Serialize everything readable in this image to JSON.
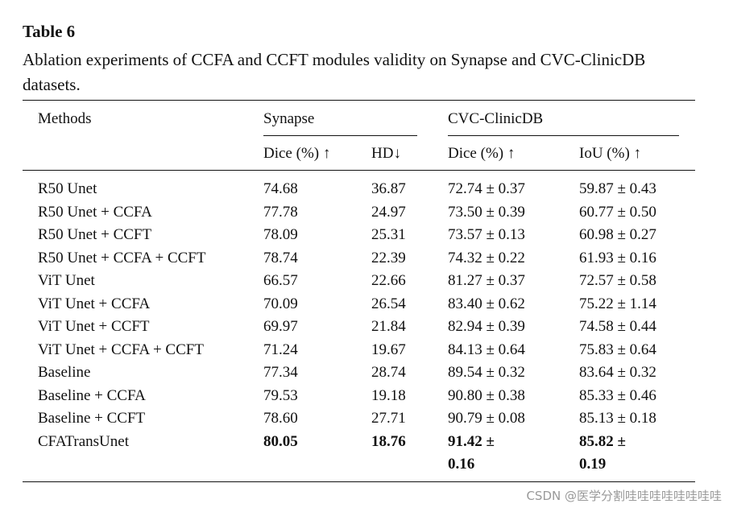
{
  "title": "Table 6",
  "caption": "Ablation experiments of CCFA and CCFT modules validity on Synapse and CVC-ClinicDB datasets.",
  "table": {
    "header": {
      "methods": "Methods",
      "group1": "Synapse",
      "group2": "CVC-ClinicDB",
      "columns": [
        "Dice (%) ↑",
        "HD↓",
        "Dice (%) ↑",
        "IoU (%) ↑"
      ]
    },
    "rows": [
      [
        "R50 Unet",
        "74.68",
        "36.87",
        "72.74 ± 0.37",
        "59.87 ± 0.43"
      ],
      [
        "R50 Unet + CCFA",
        "77.78",
        "24.97",
        "73.50 ± 0.39",
        "60.77 ± 0.50"
      ],
      [
        "R50 Unet + CCFT",
        "78.09",
        "25.31",
        "73.57 ± 0.13",
        "60.98 ± 0.27"
      ],
      [
        "R50 Unet + CCFA + CCFT",
        "78.74",
        "22.39",
        "74.32 ± 0.22",
        "61.93 ± 0.16"
      ],
      [
        "ViT Unet",
        "66.57",
        "22.66",
        "81.27 ± 0.37",
        "72.57 ± 0.58"
      ],
      [
        "ViT Unet + CCFA",
        "70.09",
        "26.54",
        "83.40 ± 0.62",
        "75.22 ± 1.14"
      ],
      [
        "ViT Unet + CCFT",
        "69.97",
        "21.84",
        "82.94 ± 0.39",
        "74.58 ± 0.44"
      ],
      [
        "ViT Unet + CCFA + CCFT",
        "71.24",
        "19.67",
        "84.13 ± 0.64",
        "75.83 ± 0.64"
      ],
      [
        "Baseline",
        "77.34",
        "28.74",
        "89.54 ± 0.32",
        "83.64 ± 0.32"
      ],
      [
        "Baseline + CCFA",
        "79.53",
        "19.18",
        "90.80 ± 0.38",
        "85.33 ± 0.46"
      ],
      [
        "Baseline + CCFT",
        "78.60",
        "27.71",
        "90.79 ± 0.08",
        "85.13 ± 0.18"
      ],
      [
        "CFATransUnet",
        "80.05",
        "18.76",
        "91.42 ± 0.16",
        "85.82 ± 0.19"
      ]
    ]
  },
  "watermark": "CSDN @医学分割哇哇哇哇哇哇哇哇"
}
